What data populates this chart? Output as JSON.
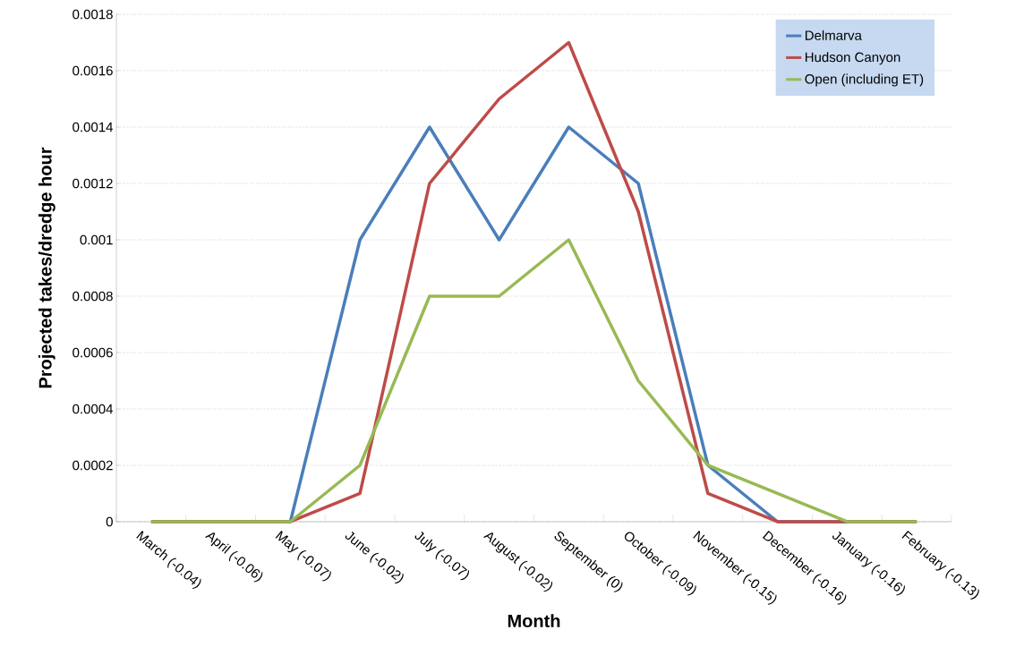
{
  "chart_data": {
    "type": "line",
    "xlabel": "Month",
    "ylabel": "Projected takes/dredge hour",
    "categories": [
      "March (-0.04)",
      "April (-0.06)",
      "May (-0.07)",
      "June (-0.02)",
      "July (-0.07)",
      "August (-0.02)",
      "September (0)",
      "October (-0.09)",
      "November (-0.15)",
      "December (-0.16)",
      "January (-0.16)",
      "February (-0.13)"
    ],
    "series": [
      {
        "name": "Delmarva",
        "color": "#4a7ebb",
        "values": [
          0,
          0,
          0,
          0.001,
          0.0014,
          0.001,
          0.0014,
          0.0012,
          0.0002,
          0,
          0,
          0
        ]
      },
      {
        "name": "Hudson Canyon",
        "color": "#be4b48",
        "values": [
          0,
          0,
          0,
          0.0001,
          0.0012,
          0.0015,
          0.0017,
          0.0011,
          0.0001,
          0,
          0,
          0
        ]
      },
      {
        "name": "Open (including ET)",
        "color": "#98b954",
        "values": [
          0,
          0,
          0,
          0.0002,
          0.0008,
          0.0008,
          0.001,
          0.0005,
          0.0002,
          0.0001,
          0,
          0
        ]
      }
    ],
    "ylim": [
      0,
      0.0018
    ],
    "yticks": [
      0,
      0.0002,
      0.0004,
      0.0006,
      0.0008,
      0.001,
      0.0012,
      0.0014,
      0.0016,
      0.0018
    ],
    "grid": "y",
    "legend": "top right",
    "marker": "none",
    "line_style": "solid"
  }
}
